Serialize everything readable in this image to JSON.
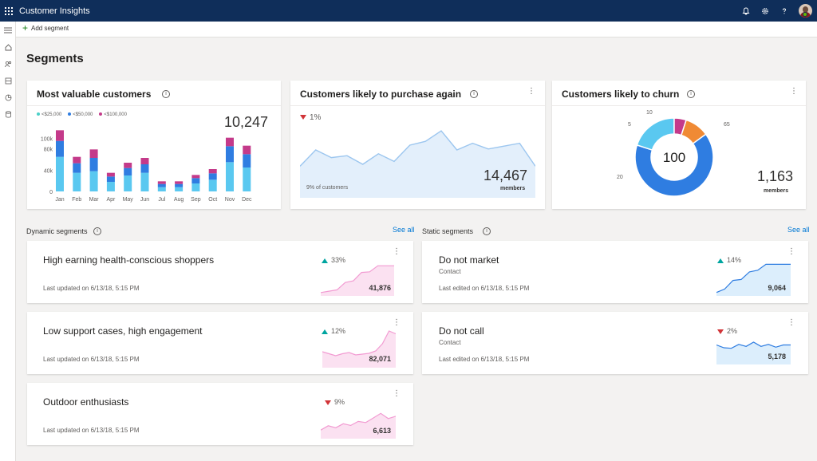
{
  "header": {
    "app_title": "Customer Insights",
    "icons": [
      "waffle-icon",
      "bell-icon",
      "gear-icon",
      "help-icon",
      "avatar"
    ]
  },
  "command_bar": {
    "add_segment_label": "Add segment"
  },
  "rail": {
    "icons": [
      "hamburger-icon",
      "home-icon",
      "people-icon",
      "segments-icon",
      "measures-icon",
      "data-icon"
    ]
  },
  "page": {
    "title": "Segments"
  },
  "colors": {
    "teal": "#4cd0c8",
    "blue": "#2f7de1",
    "magenta": "#c43a8a",
    "orange": "#f08a34",
    "cyan": "#5ac8f0",
    "nav": "#0f2e5a"
  },
  "cards": {
    "most_valuable": {
      "title": "Most valuable customers",
      "legend": [
        "<$25,000",
        "<$50,000",
        "<$100,000"
      ],
      "count": "10,247"
    },
    "purchase_again": {
      "title": "Customers likely to purchase again",
      "delta": "1%",
      "count": "14,467",
      "count_label": "members",
      "footnote": "9% of customers"
    },
    "churn": {
      "title": "Customers likely to churn",
      "center": "100",
      "count": "1,163",
      "count_label": "members"
    }
  },
  "chart_data": [
    {
      "type": "bar",
      "stacked": true,
      "categories": [
        "Jan",
        "Feb",
        "Mar",
        "Apr",
        "May",
        "Jun",
        "Jul",
        "Aug",
        "Sep",
        "Oct",
        "Nov",
        "Dec"
      ],
      "series": [
        {
          "name": "<$25,000",
          "values": [
            65,
            35,
            38,
            18,
            30,
            35,
            8,
            8,
            15,
            22,
            55,
            45
          ]
        },
        {
          "name": "<$50,000",
          "values": [
            30,
            18,
            25,
            10,
            14,
            16,
            6,
            6,
            10,
            12,
            30,
            25
          ]
        },
        {
          "name": "<$100,000",
          "values": [
            20,
            12,
            16,
            7,
            10,
            12,
            5,
            5,
            6,
            8,
            16,
            16
          ]
        }
      ],
      "y_ticks": [
        "100k",
        "80k",
        "40k",
        "0"
      ],
      "ylim": [
        0,
        120
      ]
    },
    {
      "type": "area",
      "x": [
        0,
        1,
        2,
        3,
        4,
        5,
        6,
        7,
        8,
        9,
        10,
        11,
        12,
        13,
        14,
        15
      ],
      "y": [
        33,
        50,
        42,
        44,
        35,
        46,
        38,
        55,
        59,
        70,
        50,
        57,
        51,
        54,
        57,
        33
      ]
    },
    {
      "type": "pie",
      "donut": true,
      "labels": [
        "65",
        "20",
        "5",
        "10"
      ],
      "values": [
        65,
        20,
        5,
        10
      ],
      "colors": [
        "#2f7de1",
        "#5ac8f0",
        "#c43a8a",
        "#f08a34"
      ]
    }
  ],
  "sections": {
    "dynamic": {
      "label": "Dynamic segments",
      "see_all": "See all"
    },
    "static": {
      "label": "Static segments",
      "see_all": "See all"
    }
  },
  "dynamic_segments": [
    {
      "title": "High earning health-conscious shoppers",
      "updated": "Last updated on 6/13/18, 5:15 PM",
      "delta": "33%",
      "direction": "up",
      "count": "41,876",
      "spark": [
        10,
        14,
        18,
        40,
        45,
        70,
        72,
        90,
        90,
        90
      ]
    },
    {
      "title": "Low support cases, high engagement",
      "updated": "Last updated on 6/13/18, 5:15 PM",
      "delta": "12%",
      "direction": "up",
      "count": "82,071",
      "spark": [
        40,
        35,
        30,
        35,
        38,
        32,
        34,
        36,
        42,
        60,
        92,
        85
      ]
    },
    {
      "title": "Outdoor enthusiasts",
      "updated": "Last updated on 6/13/18, 5:15 PM",
      "delta": "9%",
      "direction": "down",
      "count": "6,613",
      "spark": [
        30,
        45,
        38,
        52,
        46,
        60,
        56,
        72,
        88,
        70,
        78
      ]
    }
  ],
  "static_segments": [
    {
      "title": "Do not market",
      "subtitle": "Contact",
      "updated": "Last edited on 6/13/18, 5:15 PM",
      "delta": "14%",
      "direction": "up",
      "count": "9,064",
      "spark": [
        10,
        20,
        45,
        48,
        70,
        75,
        92,
        92,
        92,
        92
      ]
    },
    {
      "title": "Do not call",
      "subtitle": "Contact",
      "updated": "Last edited on 6/13/18, 5:15 PM",
      "delta": "2%",
      "direction": "down",
      "count": "5,178",
      "spark": [
        70,
        60,
        58,
        72,
        65,
        80,
        65,
        72,
        62,
        70,
        70
      ]
    }
  ]
}
